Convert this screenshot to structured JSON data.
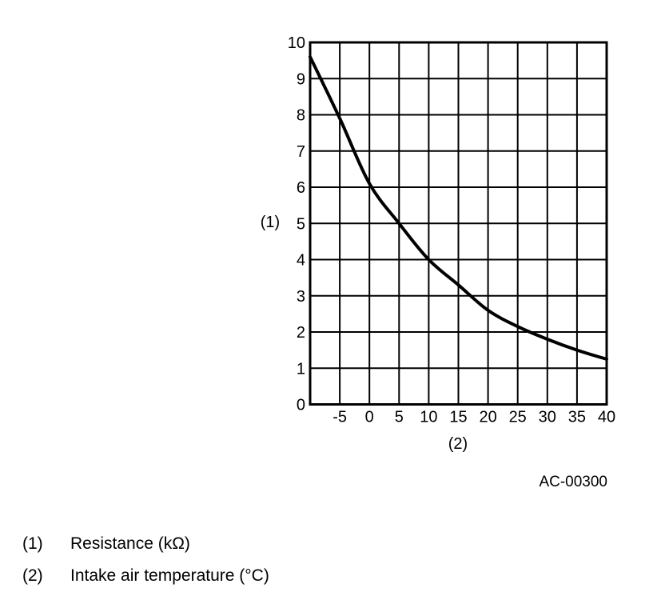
{
  "figure": {
    "drawing_code": "AC-00300",
    "y_axis_ref": "(1)",
    "x_axis_ref": "(2)",
    "legend": [
      {
        "ref": "(1)",
        "label": "Resistance (kΩ)"
      },
      {
        "ref": "(2)",
        "label": "Intake air temperature (°C)"
      }
    ]
  },
  "chart_data": {
    "type": "line",
    "title": "",
    "xlabel": "Intake air temperature (°C)",
    "ylabel": "Resistance (kΩ)",
    "xlim": [
      -10,
      40
    ],
    "ylim": [
      0,
      10
    ],
    "x_ticks": [
      -5,
      0,
      5,
      10,
      15,
      20,
      25,
      30,
      35,
      40
    ],
    "y_ticks": [
      0,
      1,
      2,
      3,
      4,
      5,
      6,
      7,
      8,
      9,
      10
    ],
    "x_grid_step": 5,
    "y_grid_step": 1,
    "grid": true,
    "legend_position": "none",
    "line_color": "#000000",
    "grid_color": "#000000",
    "series": [
      {
        "name": "resistance",
        "x": [
          -10,
          -5,
          0,
          5,
          10,
          15,
          20,
          25,
          30,
          35,
          40
        ],
        "y": [
          9.6,
          7.9,
          6.1,
          5.0,
          4.0,
          3.3,
          2.6,
          2.15,
          1.8,
          1.5,
          1.25
        ]
      }
    ]
  }
}
